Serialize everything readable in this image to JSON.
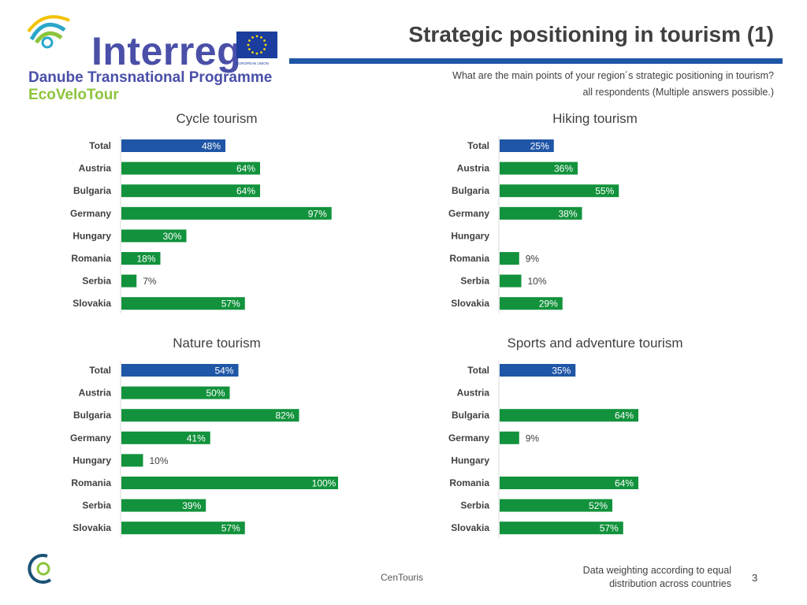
{
  "header": {
    "logo_name": "Interreg",
    "eu_label": "EUROPEAN UNION",
    "programme": "Danube Transnational Programme",
    "project": "EcoVeloTour"
  },
  "title": "Strategic positioning in tourism (1)",
  "question": "What are the main points of your region´s strategic positioning in tourism?",
  "respondents": "all respondents (Multiple answers possible.)",
  "colors": {
    "total_bar": "#1f56a6",
    "country_bar": "#12923c",
    "rule": "#1f56a6"
  },
  "chart_data": [
    {
      "type": "bar",
      "orientation": "horizontal",
      "title": "Cycle tourism",
      "categories": [
        "Total",
        "Austria",
        "Bulgaria",
        "Germany",
        "Hungary",
        "Romania",
        "Serbia",
        "Slovakia"
      ],
      "values": [
        48,
        64,
        64,
        97,
        30,
        18,
        7,
        57
      ],
      "labels": [
        "48%",
        "64%",
        "64%",
        "97%",
        "30%",
        "18%",
        "7%",
        "57%"
      ],
      "xlim": [
        0,
        100
      ],
      "unit": "%"
    },
    {
      "type": "bar",
      "orientation": "horizontal",
      "title": "Hiking tourism",
      "categories": [
        "Total",
        "Austria",
        "Bulgaria",
        "Germany",
        "Hungary",
        "Romania",
        "Serbia",
        "Slovakia"
      ],
      "values": [
        25,
        36,
        55,
        38,
        null,
        9,
        10,
        29
      ],
      "labels": [
        "25%",
        "36%",
        "55%",
        "38%",
        "",
        "9%",
        "10%",
        "29%"
      ],
      "xlim": [
        0,
        100
      ],
      "unit": "%"
    },
    {
      "type": "bar",
      "orientation": "horizontal",
      "title": "Nature tourism",
      "categories": [
        "Total",
        "Austria",
        "Bulgaria",
        "Germany",
        "Hungary",
        "Romania",
        "Serbia",
        "Slovakia"
      ],
      "values": [
        54,
        50,
        82,
        41,
        10,
        100,
        39,
        57
      ],
      "labels": [
        "54%",
        "50%",
        "82%",
        "41%",
        "10%",
        "100%",
        "39%",
        "57%"
      ],
      "xlim": [
        0,
        100
      ],
      "unit": "%"
    },
    {
      "type": "bar",
      "orientation": "horizontal",
      "title": "Sports and adventure tourism",
      "categories": [
        "Total",
        "Austria",
        "Bulgaria",
        "Germany",
        "Hungary",
        "Romania",
        "Serbia",
        "Slovakia"
      ],
      "values": [
        35,
        null,
        64,
        9,
        null,
        64,
        52,
        57
      ],
      "labels": [
        "35%",
        "",
        "64%",
        "9%",
        "",
        "64%",
        "52%",
        "57%"
      ],
      "xlim": [
        0,
        100
      ],
      "unit": "%"
    }
  ],
  "footer": {
    "source": "CenTouris",
    "note_line1": "Data weighting according to equal",
    "note_line2": "distribution across countries",
    "page": "3"
  }
}
